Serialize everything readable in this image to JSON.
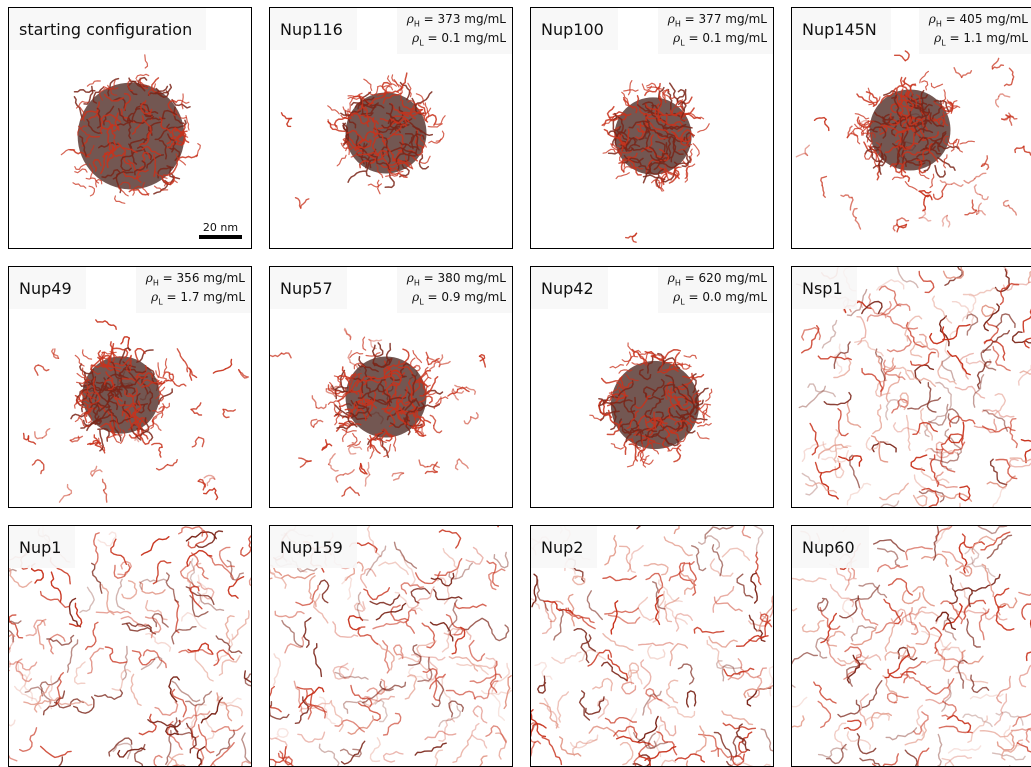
{
  "colors": {
    "strand": "#c8321c",
    "strand_dark": "#7a2418",
    "strand_light": "#e39a8a",
    "core": "#5b3a34"
  },
  "scale_bar": "20 nm",
  "density_symbols": {
    "high": "ρ",
    "high_sub": "H",
    "low": "ρ",
    "low_sub": "L"
  },
  "panels": [
    {
      "label": "starting configuration",
      "state": "cluster",
      "core": "dark"
    },
    {
      "label": "Nup116",
      "state": "cluster",
      "rho_h": "373 mg/mL",
      "rho_l": "0.1 mg/mL"
    },
    {
      "label": "Nup100",
      "state": "cluster",
      "rho_h": "377 mg/mL",
      "rho_l": "0.1 mg/mL"
    },
    {
      "label": "Nup145N",
      "state": "cluster-dispersed",
      "rho_h": "405 mg/mL",
      "rho_l": "1.1 mg/mL"
    },
    {
      "label": "Nup49",
      "state": "cluster-dispersed",
      "rho_h": "356 mg/mL",
      "rho_l": "1.7 mg/mL"
    },
    {
      "label": "Nup57",
      "state": "cluster-dispersed",
      "rho_h": "380 mg/mL",
      "rho_l": "0.9 mg/mL"
    },
    {
      "label": "Nup42",
      "state": "cluster",
      "rho_h": "620 mg/mL",
      "rho_l": "0.0 mg/mL"
    },
    {
      "label": "Nsp1",
      "state": "network"
    },
    {
      "label": "Nup1",
      "state": "network"
    },
    {
      "label": "Nup159",
      "state": "network"
    },
    {
      "label": "Nup2",
      "state": "network"
    },
    {
      "label": "Nup60",
      "state": "network"
    }
  ]
}
